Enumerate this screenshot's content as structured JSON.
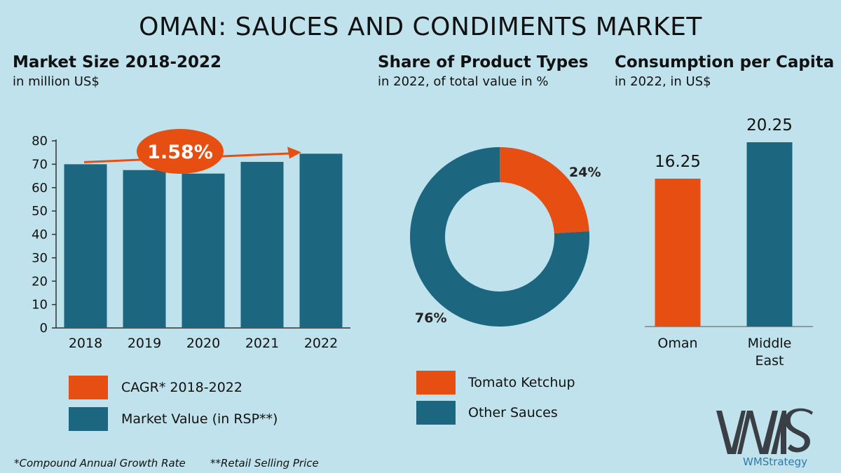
{
  "title": "OMAN: SAUCES AND CONDIMENTS MARKET",
  "colors": {
    "orange": "#e74f12",
    "teal": "#1c6680",
    "background": "#c0e2ec"
  },
  "sections": {
    "market_size": {
      "title": "Market Size 2018-2022",
      "subtitle": "in million US$"
    },
    "share": {
      "title": "Share of Product Types",
      "subtitle": "in 2022, of total value in %"
    },
    "per_capita": {
      "title": "Consumption per Capita",
      "subtitle": "in 2022, in US$"
    }
  },
  "chart_data": [
    {
      "type": "bar",
      "categories": [
        "2018",
        "2019",
        "2020",
        "2021",
        "2022"
      ],
      "values": [
        70,
        67.5,
        66,
        71,
        74.5
      ],
      "ylim": [
        0,
        80
      ],
      "yticks": [
        "0",
        "10",
        "20",
        "30",
        "40",
        "50",
        "60",
        "70",
        "80"
      ],
      "annotation": {
        "label": "1.58%",
        "meaning": "CAGR* 2018-2022"
      },
      "legend": [
        {
          "label": "CAGR* 2018-2022",
          "color": "#e74f12"
        },
        {
          "label": "Market Value (in RSP**)",
          "color": "#1c6680"
        }
      ]
    },
    {
      "type": "pie",
      "slices": [
        {
          "name": "Tomato Ketchup",
          "value": 24,
          "label": "24%",
          "color": "#e74f12"
        },
        {
          "name": "Other Sauces",
          "value": 76,
          "label": "76%",
          "color": "#1c6680"
        }
      ],
      "legend": [
        {
          "label": "Tomato Ketchup",
          "color": "#e74f12"
        },
        {
          "label": "Other Sauces",
          "color": "#1c6680"
        }
      ]
    },
    {
      "type": "bar",
      "categories": [
        "Oman",
        "Middle East"
      ],
      "category_lines": [
        [
          "Oman"
        ],
        [
          "Middle",
          "East"
        ]
      ],
      "values": [
        16.25,
        20.25
      ],
      "value_labels": [
        "16.25",
        "20.25"
      ],
      "colors": [
        "#e74f12",
        "#1c6680"
      ]
    }
  ],
  "footnotes": {
    "cagr": "*Compound Annual Growth Rate",
    "rsp": "**Retail Selling Price"
  },
  "logo": {
    "text": "WMStrategy",
    "icon": "wms-logo-icon"
  }
}
